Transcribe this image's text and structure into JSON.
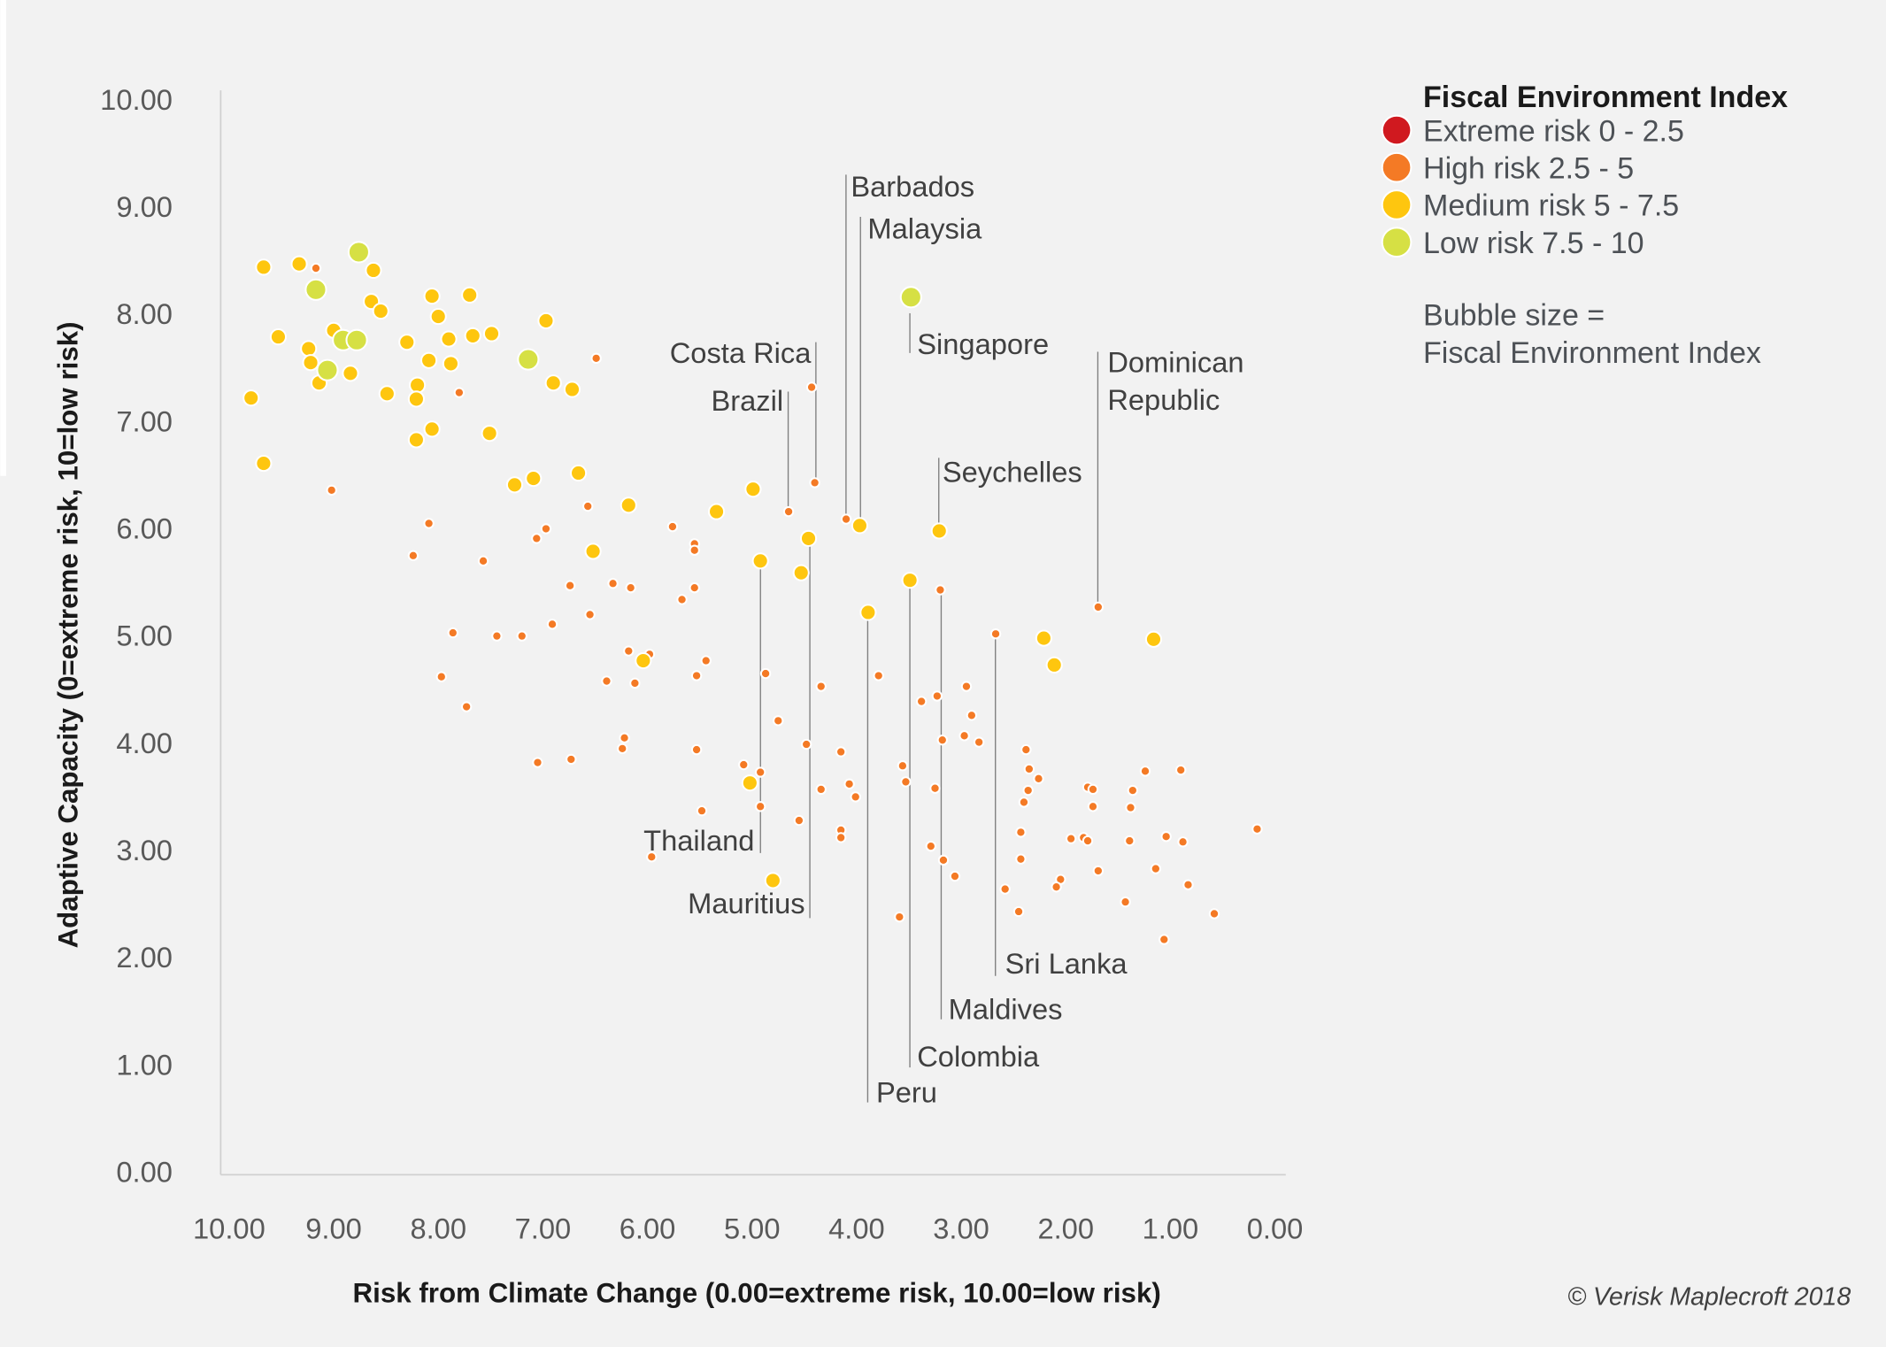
{
  "chart_data": {
    "type": "scatter",
    "xlabel": "Risk from Climate Change (0.00=extreme risk, 10.00=low risk)",
    "ylabel": "Adaptive Capacity (0=extreme risk, 10=low risk)",
    "xlim": [
      10,
      0
    ],
    "ylim": [
      0,
      10
    ],
    "x_reversed": true,
    "grid": false,
    "xticks": [
      "10.00",
      "9.00",
      "8.00",
      "7.00",
      "6.00",
      "5.00",
      "4.00",
      "3.00",
      "2.00",
      "1.00",
      "0.00"
    ],
    "yticks": [
      "0.00",
      "1.00",
      "2.00",
      "3.00",
      "4.00",
      "5.00",
      "6.00",
      "7.00",
      "8.00",
      "9.00",
      "10.00"
    ],
    "legend": {
      "title": "Fiscal Environment Index",
      "placement": "top-right",
      "entries": [
        {
          "key": "extreme",
          "label": "Extreme risk 0 - 2.5",
          "color": "#d0191f"
        },
        {
          "key": "high",
          "label": "High risk 2.5 - 5",
          "color": "#f47a25"
        },
        {
          "key": "medium",
          "label": "Medium risk 5 - 7.5",
          "color": "#fec60f"
        },
        {
          "key": "low",
          "label": "Low risk 7.5 - 10",
          "color": "#d6e044"
        }
      ],
      "note_line1": "Bubble size =",
      "note_line2": "Fiscal Environment Index"
    },
    "copyright": "© Verisk Maplecroft 2018",
    "annotations": [
      "Barbados",
      "Malaysia",
      "Costa Rica",
      "Brazil",
      "Singapore",
      "Dominican",
      "Republic",
      "Seychelles",
      "Thailand",
      "Mauritius",
      "Sri Lanka",
      "Maldives",
      "Colombia",
      "Peru"
    ],
    "points": [
      [
        9.67,
        8.43,
        "medium"
      ],
      [
        9.33,
        8.46,
        "medium"
      ],
      [
        9.17,
        8.42,
        "high"
      ],
      [
        8.76,
        8.57,
        "low"
      ],
      [
        8.62,
        8.4,
        "medium"
      ],
      [
        9.17,
        8.22,
        "low"
      ],
      [
        8.64,
        8.11,
        "medium"
      ],
      [
        8.55,
        8.02,
        "medium"
      ],
      [
        8.06,
        8.16,
        "medium"
      ],
      [
        7.7,
        8.17,
        "medium"
      ],
      [
        9.53,
        7.78,
        "medium"
      ],
      [
        9.0,
        7.84,
        "medium"
      ],
      [
        9.24,
        7.67,
        "medium"
      ],
      [
        8.91,
        7.75,
        "low"
      ],
      [
        8.78,
        7.75,
        "low"
      ],
      [
        9.22,
        7.54,
        "medium"
      ],
      [
        9.06,
        7.47,
        "low"
      ],
      [
        9.14,
        7.35,
        "medium"
      ],
      [
        8.84,
        7.44,
        "medium"
      ],
      [
        8.3,
        7.73,
        "medium"
      ],
      [
        8.0,
        7.97,
        "medium"
      ],
      [
        7.9,
        7.76,
        "medium"
      ],
      [
        7.67,
        7.79,
        "medium"
      ],
      [
        7.49,
        7.81,
        "medium"
      ],
      [
        6.97,
        7.93,
        "medium"
      ],
      [
        8.09,
        7.56,
        "medium"
      ],
      [
        7.88,
        7.53,
        "medium"
      ],
      [
        8.2,
        7.33,
        "medium"
      ],
      [
        8.49,
        7.25,
        "medium"
      ],
      [
        8.21,
        7.2,
        "medium"
      ],
      [
        7.8,
        7.26,
        "high"
      ],
      [
        7.14,
        7.57,
        "low"
      ],
      [
        6.9,
        7.35,
        "medium"
      ],
      [
        6.72,
        7.29,
        "medium"
      ],
      [
        6.49,
        7.58,
        "high"
      ],
      [
        9.79,
        7.21,
        "medium"
      ],
      [
        8.06,
        6.92,
        "medium"
      ],
      [
        8.21,
        6.82,
        "medium"
      ],
      [
        7.51,
        6.88,
        "medium"
      ],
      [
        9.67,
        6.6,
        "medium"
      ],
      [
        9.02,
        6.35,
        "high"
      ],
      [
        7.27,
        6.4,
        "medium"
      ],
      [
        7.09,
        6.46,
        "medium"
      ],
      [
        6.66,
        6.51,
        "medium"
      ],
      [
        8.09,
        6.04,
        "high"
      ],
      [
        8.24,
        5.74,
        "high"
      ],
      [
        6.97,
        5.99,
        "high"
      ],
      [
        7.06,
        5.9,
        "high"
      ],
      [
        6.57,
        6.2,
        "high"
      ],
      [
        6.18,
        6.21,
        "medium"
      ],
      [
        7.57,
        5.69,
        "high"
      ],
      [
        6.74,
        5.46,
        "high"
      ],
      [
        6.91,
        5.1,
        "high"
      ],
      [
        6.55,
        5.19,
        "high"
      ],
      [
        6.33,
        5.48,
        "high"
      ],
      [
        6.16,
        5.44,
        "high"
      ],
      [
        6.52,
        5.78,
        "medium"
      ],
      [
        7.86,
        5.02,
        "high"
      ],
      [
        7.44,
        4.99,
        "high"
      ],
      [
        7.2,
        4.99,
        "high"
      ],
      [
        7.97,
        4.61,
        "high"
      ],
      [
        7.73,
        4.33,
        "high"
      ],
      [
        7.05,
        3.81,
        "high"
      ],
      [
        6.73,
        3.84,
        "high"
      ],
      [
        6.39,
        4.57,
        "high"
      ],
      [
        6.18,
        4.85,
        "high"
      ],
      [
        5.98,
        4.82,
        "high"
      ],
      [
        6.04,
        4.76,
        "medium"
      ],
      [
        6.12,
        4.55,
        "high"
      ],
      [
        6.22,
        4.04,
        "high"
      ],
      [
        6.24,
        3.94,
        "high"
      ],
      [
        5.96,
        2.93,
        "high"
      ],
      [
        5.76,
        6.01,
        "high"
      ],
      [
        5.55,
        5.85,
        "high"
      ],
      [
        5.55,
        5.79,
        "high"
      ],
      [
        5.67,
        5.33,
        "high"
      ],
      [
        5.55,
        5.44,
        "high"
      ],
      [
        5.34,
        6.15,
        "medium"
      ],
      [
        4.99,
        6.36,
        "medium"
      ],
      [
        5.44,
        4.76,
        "high"
      ],
      [
        5.53,
        4.62,
        "high"
      ],
      [
        5.53,
        3.93,
        "high"
      ],
      [
        5.48,
        3.36,
        "high"
      ],
      [
        4.92,
        5.69,
        "medium"
      ],
      [
        4.87,
        4.64,
        "high"
      ],
      [
        4.75,
        4.2,
        "high"
      ],
      [
        5.08,
        3.79,
        "high"
      ],
      [
        4.92,
        3.72,
        "high"
      ],
      [
        5.02,
        3.62,
        "medium"
      ],
      [
        4.92,
        3.4,
        "high"
      ],
      [
        4.55,
        3.27,
        "high"
      ],
      [
        4.8,
        2.71,
        "medium"
      ],
      [
        4.65,
        6.15,
        "high"
      ],
      [
        4.43,
        7.31,
        "high"
      ],
      [
        4.4,
        6.42,
        "high"
      ],
      [
        4.46,
        5.9,
        "medium"
      ],
      [
        4.53,
        5.58,
        "medium"
      ],
      [
        4.48,
        3.98,
        "high"
      ],
      [
        4.34,
        4.52,
        "high"
      ],
      [
        4.34,
        3.56,
        "high"
      ],
      [
        4.1,
        6.08,
        "high"
      ],
      [
        3.97,
        6.02,
        "medium"
      ],
      [
        3.89,
        5.21,
        "medium"
      ],
      [
        4.15,
        3.91,
        "high"
      ],
      [
        4.07,
        3.61,
        "high"
      ],
      [
        4.01,
        3.49,
        "high"
      ],
      [
        4.15,
        3.18,
        "high"
      ],
      [
        4.15,
        3.11,
        "high"
      ],
      [
        3.79,
        4.62,
        "high"
      ],
      [
        3.48,
        8.15,
        "low"
      ],
      [
        3.21,
        5.97,
        "medium"
      ],
      [
        3.49,
        5.51,
        "medium"
      ],
      [
        3.2,
        5.42,
        "high"
      ],
      [
        2.67,
        5.01,
        "high"
      ],
      [
        1.69,
        5.26,
        "high"
      ],
      [
        2.21,
        4.97,
        "medium"
      ],
      [
        2.11,
        4.72,
        "medium"
      ],
      [
        1.16,
        4.96,
        "medium"
      ],
      [
        3.38,
        4.38,
        "high"
      ],
      [
        3.23,
        4.43,
        "high"
      ],
      [
        2.95,
        4.52,
        "high"
      ],
      [
        2.9,
        4.25,
        "high"
      ],
      [
        2.97,
        4.06,
        "high"
      ],
      [
        3.18,
        4.02,
        "high"
      ],
      [
        2.83,
        4.0,
        "high"
      ],
      [
        3.56,
        3.78,
        "high"
      ],
      [
        3.53,
        3.63,
        "high"
      ],
      [
        3.25,
        3.57,
        "high"
      ],
      [
        3.29,
        3.03,
        "high"
      ],
      [
        3.17,
        2.9,
        "high"
      ],
      [
        3.06,
        2.75,
        "high"
      ],
      [
        3.59,
        2.37,
        "high"
      ],
      [
        2.58,
        2.63,
        "high"
      ],
      [
        2.38,
        3.93,
        "high"
      ],
      [
        2.35,
        3.75,
        "high"
      ],
      [
        2.26,
        3.66,
        "high"
      ],
      [
        2.36,
        3.55,
        "high"
      ],
      [
        2.4,
        3.44,
        "high"
      ],
      [
        2.43,
        3.16,
        "high"
      ],
      [
        2.43,
        2.91,
        "high"
      ],
      [
        2.45,
        2.42,
        "high"
      ],
      [
        2.05,
        2.72,
        "high"
      ],
      [
        2.09,
        2.65,
        "high"
      ],
      [
        1.95,
        3.1,
        "high"
      ],
      [
        1.83,
        3.11,
        "high"
      ],
      [
        1.79,
        3.08,
        "high"
      ],
      [
        1.79,
        3.58,
        "high"
      ],
      [
        1.74,
        3.56,
        "high"
      ],
      [
        1.74,
        3.4,
        "high"
      ],
      [
        1.69,
        2.8,
        "high"
      ],
      [
        1.38,
        3.39,
        "high"
      ],
      [
        1.36,
        3.55,
        "high"
      ],
      [
        1.24,
        3.73,
        "high"
      ],
      [
        1.39,
        3.08,
        "high"
      ],
      [
        1.43,
        2.51,
        "high"
      ],
      [
        1.14,
        2.82,
        "high"
      ],
      [
        1.04,
        3.12,
        "high"
      ],
      [
        1.06,
        2.16,
        "high"
      ],
      [
        0.9,
        3.74,
        "high"
      ],
      [
        0.88,
        3.07,
        "high"
      ],
      [
        0.83,
        2.67,
        "high"
      ],
      [
        0.58,
        2.4,
        "high"
      ],
      [
        0.17,
        3.19,
        "high"
      ]
    ]
  }
}
